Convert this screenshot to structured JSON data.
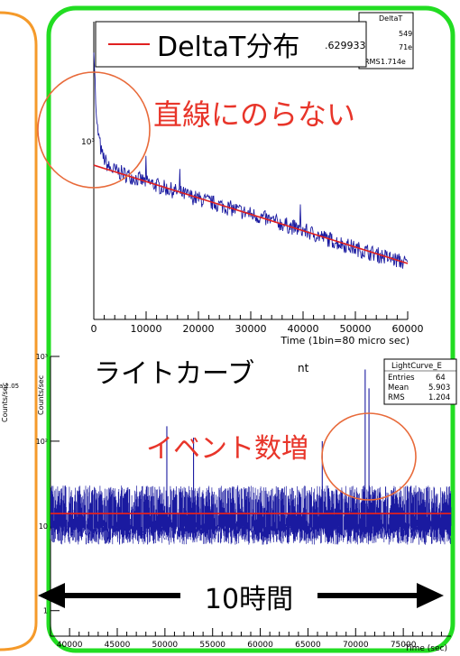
{
  "colors": {
    "green_frame": "#22dd22",
    "orange_frame": "#f59a2a",
    "hist": "#1a1aa0",
    "fit": "#e02020",
    "annot": "#e8352a",
    "circle": "#e86a3a"
  },
  "left_fragments": {
    "axis_fragment": "Counts/sec",
    "lines": [
      "a",
      "a 2.05",
      "1.6 e"
    ]
  },
  "top_chart": {
    "stats_fragment": {
      "name": "DeltaT",
      "values": [
        "549",
        "71e",
        "1.714e"
      ],
      "labels": [
        "",
        "",
        "RMS"
      ]
    },
    "legend_label": "DeltaT分布",
    "legend_value": ".629933",
    "ylabel_fragment": "10³",
    "annotation": "直線にのらない",
    "xlabel": "Time (1bin=80 micro sec)",
    "chart_data": {
      "type": "line",
      "title": "",
      "xlabel": "Time (1bin=80 micro sec)",
      "ylabel": "",
      "yscale": "log",
      "xlim": [
        0,
        60000
      ],
      "xticks": [
        "0",
        "10000",
        "20000",
        "30000",
        "40000",
        "50000",
        "60000"
      ],
      "yticks": [
        "10³"
      ],
      "series": [
        {
          "name": "",
          "x": [
            0,
            500,
            1500,
            3000,
            10000,
            20000,
            30000,
            40000,
            50000,
            60000
          ],
          "y": [
            9000,
            2500,
            1500,
            1180,
            950,
            720,
            560,
            430,
            320,
            250
          ]
        },
        {
          "name": "fit",
          "x": [
            0,
            60000
          ],
          "y": [
            1250,
            250
          ]
        }
      ]
    }
  },
  "bottom_chart": {
    "title_fragment": "nt",
    "legend_label": "ライトカーブ",
    "stats": {
      "name": "LightCurve_E",
      "rows": [
        {
          "label": "Entries",
          "value": "64"
        },
        {
          "label": "Mean",
          "value": "5.903"
        },
        {
          "label": "RMS",
          "value": "1.204"
        }
      ]
    },
    "ylabel": "Counts/sec",
    "annotation": "イベント数増",
    "range_label": "10時間",
    "xlabel": "Time (sec)",
    "chart_data": {
      "type": "line",
      "title": "",
      "xlabel": "Time (sec)",
      "ylabel": "Counts/sec",
      "yscale": "log",
      "xlim": [
        38000,
        80000
      ],
      "ylim": [
        0.5,
        1000
      ],
      "xticks": [
        "40000",
        "45000",
        "50000",
        "55000",
        "60000",
        "65000",
        "70000",
        "75000"
      ],
      "yticks": [
        "1",
        "10",
        "10²",
        "10³"
      ],
      "series": [
        {
          "name": "",
          "x": [
            38000,
            80000
          ],
          "y": [
            14,
            14
          ],
          "spread": [
            7,
            30
          ]
        },
        {
          "name": "fit",
          "x": [
            38000,
            80000
          ],
          "y": [
            14,
            14
          ]
        }
      ],
      "spikes": [
        {
          "x": 71000,
          "y": 700
        },
        {
          "x": 71400,
          "y": 420
        },
        {
          "x": 50200,
          "y": 150
        },
        {
          "x": 53000,
          "y": 110
        },
        {
          "x": 66500,
          "y": 100
        }
      ]
    }
  }
}
